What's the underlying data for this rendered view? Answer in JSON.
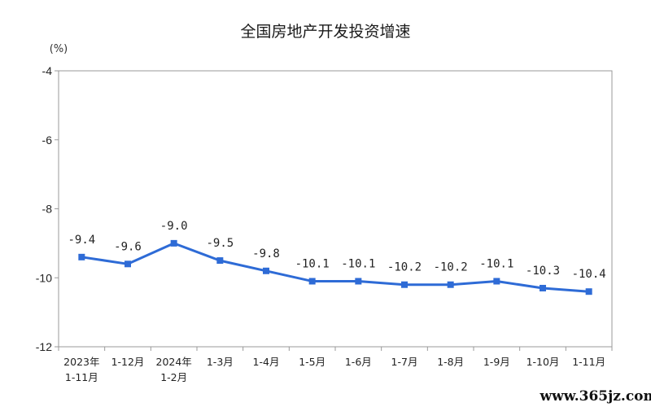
{
  "chart_data": {
    "type": "line",
    "title": "全国房地产开发投资增速",
    "unit": "(%)",
    "categories": [
      [
        "2023年",
        "1-11月"
      ],
      [
        "1-12月"
      ],
      [
        "2024年",
        "1-2月"
      ],
      [
        "1-3月"
      ],
      [
        "1-4月"
      ],
      [
        "1-5月"
      ],
      [
        "1-6月"
      ],
      [
        "1-7月"
      ],
      [
        "1-8月"
      ],
      [
        "1-9月"
      ],
      [
        "1-10月"
      ],
      [
        "1-11月"
      ]
    ],
    "values": [
      -9.4,
      -9.6,
      -9.0,
      -9.5,
      -9.8,
      -10.1,
      -10.1,
      -10.2,
      -10.2,
      -10.1,
      -10.3,
      -10.4
    ],
    "data_labels": [
      "-9.4",
      "-9.6",
      "-9.0",
      "-9.5",
      "-9.8",
      "-10.1",
      "-10.1",
      "-10.2",
      "-10.2",
      "-10.1",
      "-10.3",
      "-10.4"
    ],
    "yticks": [
      -4,
      -6,
      -8,
      -10,
      -12
    ],
    "ylim": [
      -12,
      -4
    ],
    "line_color": "#2e6bd6",
    "grid": false,
    "legend": "none"
  },
  "watermark": "www.365jz.com"
}
